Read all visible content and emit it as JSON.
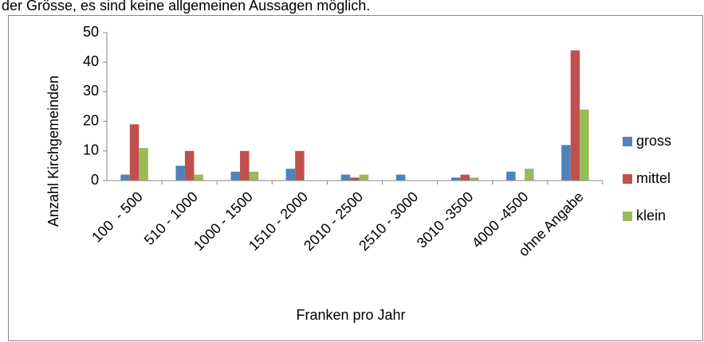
{
  "text": "der Grösse, es sind keine allgemeinen Aussagen möglich.",
  "chart_data": {
    "type": "bar",
    "categories": [
      "100  - 500",
      "510 - 1000",
      "1000 - 1500",
      "1510 - 2000",
      "2010 - 2500",
      "2510 - 3000",
      "3010 -3500",
      "4000 -4500",
      "ohne Angabe"
    ],
    "series": [
      {
        "name": "gross",
        "color": "#4f81bd",
        "values": [
          2,
          5,
          3,
          4,
          2,
          2,
          1,
          3,
          12
        ]
      },
      {
        "name": "mittel",
        "color": "#c0504d",
        "values": [
          19,
          10,
          10,
          10,
          1,
          0,
          2,
          0,
          44
        ]
      },
      {
        "name": "klein",
        "color": "#9bbb59",
        "values": [
          11,
          2,
          3,
          0,
          2,
          0,
          1,
          4,
          24
        ]
      }
    ],
    "ylabel": "Anzahl Kirchgemeinden",
    "xlabel": "Franken pro Jahr",
    "ylim": [
      0,
      50
    ],
    "yticks": [
      0,
      10,
      20,
      30,
      40,
      50
    ],
    "legend": "right"
  }
}
